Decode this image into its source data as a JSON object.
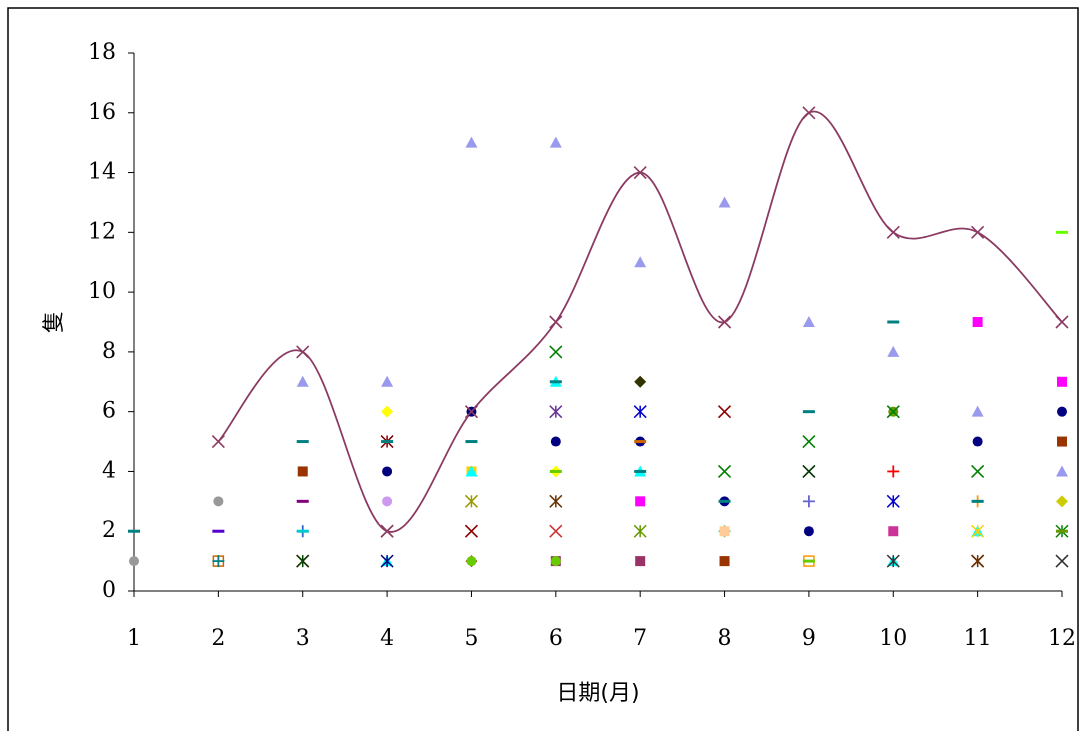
{
  "chart_data": {
    "type": "scatter",
    "title": "",
    "xlabel": "日期(月)",
    "ylabel": "隻",
    "x_ticks": [
      "1",
      "2",
      "3",
      "4",
      "5",
      "6",
      "7",
      "8",
      "9",
      "10",
      "11",
      "12"
    ],
    "y_ticks": [
      "0",
      "2",
      "4",
      "6",
      "8",
      "10",
      "12",
      "14",
      "16",
      "18"
    ],
    "xlim": [
      1,
      12
    ],
    "ylim": [
      0,
      18
    ],
    "grid": false,
    "legend": "none",
    "total_line": {
      "color": "#8b3a62",
      "marker": "x",
      "points": [
        [
          2,
          5
        ],
        [
          3,
          8
        ],
        [
          4,
          2
        ],
        [
          5,
          6
        ],
        [
          6,
          9
        ],
        [
          7,
          14
        ],
        [
          8,
          9
        ],
        [
          9,
          16
        ],
        [
          10,
          12
        ],
        [
          11,
          12
        ],
        [
          12,
          9
        ]
      ]
    },
    "scatter_points": [
      {
        "x": 1,
        "y": 1,
        "marker": "circle",
        "color": "#999999"
      },
      {
        "x": 1,
        "y": 2,
        "marker": "dash",
        "color": "#008080"
      },
      {
        "x": 2,
        "y": 1,
        "marker": "square-open",
        "color": "#cc6600"
      },
      {
        "x": 2,
        "y": 1,
        "marker": "plus",
        "color": "#008080"
      },
      {
        "x": 2,
        "y": 2,
        "marker": "dash",
        "color": "#5500cc"
      },
      {
        "x": 2,
        "y": 3,
        "marker": "circle",
        "color": "#999999"
      },
      {
        "x": 3,
        "y": 1,
        "marker": "x",
        "color": "#8b0000"
      },
      {
        "x": 3,
        "y": 1,
        "marker": "star",
        "color": "#004400"
      },
      {
        "x": 3,
        "y": 2,
        "marker": "plus",
        "color": "#3366cc"
      },
      {
        "x": 3,
        "y": 2,
        "marker": "dash",
        "color": "#00cccc"
      },
      {
        "x": 3,
        "y": 3,
        "marker": "dash",
        "color": "#800080"
      },
      {
        "x": 3,
        "y": 4,
        "marker": "square",
        "color": "#993300"
      },
      {
        "x": 3,
        "y": 5,
        "marker": "dash",
        "color": "#008080"
      },
      {
        "x": 3,
        "y": 7,
        "marker": "triangle",
        "color": "#9999ee"
      },
      {
        "x": 4,
        "y": 1,
        "marker": "triangle",
        "color": "#00ffff"
      },
      {
        "x": 4,
        "y": 1,
        "marker": "star",
        "color": "#000080"
      },
      {
        "x": 4,
        "y": 2,
        "marker": "x",
        "color": "#996666"
      },
      {
        "x": 4,
        "y": 3,
        "marker": "circle",
        "color": "#cc99ee"
      },
      {
        "x": 4,
        "y": 4,
        "marker": "circle",
        "color": "#000080"
      },
      {
        "x": 4,
        "y": 5,
        "marker": "star",
        "color": "#800000"
      },
      {
        "x": 4,
        "y": 5,
        "marker": "dash",
        "color": "#008080"
      },
      {
        "x": 4,
        "y": 6,
        "marker": "diamond",
        "color": "#ffff00"
      },
      {
        "x": 4,
        "y": 7,
        "marker": "triangle",
        "color": "#9999ee"
      },
      {
        "x": 5,
        "y": 1,
        "marker": "diamond",
        "color": "#993300"
      },
      {
        "x": 5,
        "y": 1,
        "marker": "circle",
        "color": "#66cc00"
      },
      {
        "x": 5,
        "y": 2,
        "marker": "x",
        "color": "#8b0000"
      },
      {
        "x": 5,
        "y": 3,
        "marker": "star",
        "color": "#999900"
      },
      {
        "x": 5,
        "y": 4,
        "marker": "square",
        "color": "#ffcc00"
      },
      {
        "x": 5,
        "y": 4,
        "marker": "triangle",
        "color": "#00ffff"
      },
      {
        "x": 5,
        "y": 5,
        "marker": "dash",
        "color": "#008080"
      },
      {
        "x": 5,
        "y": 6,
        "marker": "circle",
        "color": "#000080"
      },
      {
        "x": 5,
        "y": 15,
        "marker": "triangle",
        "color": "#9999ee"
      },
      {
        "x": 6,
        "y": 1,
        "marker": "square",
        "color": "#993366"
      },
      {
        "x": 6,
        "y": 1,
        "marker": "circle",
        "color": "#66cc00"
      },
      {
        "x": 6,
        "y": 2,
        "marker": "x",
        "color": "#cc3333"
      },
      {
        "x": 6,
        "y": 3,
        "marker": "star",
        "color": "#663300"
      },
      {
        "x": 6,
        "y": 4,
        "marker": "diamond",
        "color": "#ffff00"
      },
      {
        "x": 6,
        "y": 4,
        "marker": "dash",
        "color": "#66cc00"
      },
      {
        "x": 6,
        "y": 5,
        "marker": "circle",
        "color": "#000080"
      },
      {
        "x": 6,
        "y": 6,
        "marker": "star",
        "color": "#663399"
      },
      {
        "x": 6,
        "y": 7,
        "marker": "triangle",
        "color": "#00ffff"
      },
      {
        "x": 6,
        "y": 7,
        "marker": "dash",
        "color": "#008080"
      },
      {
        "x": 6,
        "y": 8,
        "marker": "x",
        "color": "#008000"
      },
      {
        "x": 6,
        "y": 15,
        "marker": "triangle",
        "color": "#9999ee"
      },
      {
        "x": 7,
        "y": 1,
        "marker": "square",
        "color": "#993366"
      },
      {
        "x": 7,
        "y": 2,
        "marker": "star",
        "color": "#669900"
      },
      {
        "x": 7,
        "y": 3,
        "marker": "square",
        "color": "#ff00ff"
      },
      {
        "x": 7,
        "y": 4,
        "marker": "triangle",
        "color": "#00ffff"
      },
      {
        "x": 7,
        "y": 4,
        "marker": "dash",
        "color": "#008080"
      },
      {
        "x": 7,
        "y": 5,
        "marker": "circle",
        "color": "#000080"
      },
      {
        "x": 7,
        "y": 5,
        "marker": "dash",
        "color": "#cc6600"
      },
      {
        "x": 7,
        "y": 6,
        "marker": "star",
        "color": "#0000cc"
      },
      {
        "x": 7,
        "y": 7,
        "marker": "diamond",
        "color": "#333300"
      },
      {
        "x": 7,
        "y": 11,
        "marker": "triangle",
        "color": "#9999ee"
      },
      {
        "x": 8,
        "y": 1,
        "marker": "circle",
        "color": "#cc6600"
      },
      {
        "x": 8,
        "y": 1,
        "marker": "square",
        "color": "#993300"
      },
      {
        "x": 8,
        "y": 2,
        "marker": "plus",
        "color": "#66cc66"
      },
      {
        "x": 8,
        "y": 2,
        "marker": "square",
        "color": "#ffcc99"
      },
      {
        "x": 8,
        "y": 3,
        "marker": "circle",
        "color": "#000080"
      },
      {
        "x": 8,
        "y": 3,
        "marker": "dash",
        "color": "#008080"
      },
      {
        "x": 8,
        "y": 4,
        "marker": "x",
        "color": "#008000"
      },
      {
        "x": 8,
        "y": 6,
        "marker": "x",
        "color": "#8b0000"
      },
      {
        "x": 8,
        "y": 13,
        "marker": "triangle",
        "color": "#9999ee"
      },
      {
        "x": 9,
        "y": 1,
        "marker": "square-open",
        "color": "#ff9900"
      },
      {
        "x": 9,
        "y": 1,
        "marker": "dash",
        "color": "#66cc00"
      },
      {
        "x": 9,
        "y": 2,
        "marker": "circle",
        "color": "#000080"
      },
      {
        "x": 9,
        "y": 3,
        "marker": "plus",
        "color": "#6666cc"
      },
      {
        "x": 9,
        "y": 4,
        "marker": "x",
        "color": "#003300"
      },
      {
        "x": 9,
        "y": 5,
        "marker": "x",
        "color": "#008000"
      },
      {
        "x": 9,
        "y": 6,
        "marker": "dash",
        "color": "#008080"
      },
      {
        "x": 9,
        "y": 9,
        "marker": "triangle",
        "color": "#9999ee"
      },
      {
        "x": 10,
        "y": 1,
        "marker": "triangle",
        "color": "#00ffff"
      },
      {
        "x": 10,
        "y": 1,
        "marker": "star",
        "color": "#333333"
      },
      {
        "x": 10,
        "y": 2,
        "marker": "square",
        "color": "#cc3399"
      },
      {
        "x": 10,
        "y": 3,
        "marker": "star",
        "color": "#0000cc"
      },
      {
        "x": 10,
        "y": 4,
        "marker": "plus",
        "color": "#ff0000"
      },
      {
        "x": 10,
        "y": 6,
        "marker": "circle",
        "color": "#669900"
      },
      {
        "x": 10,
        "y": 6,
        "marker": "x",
        "color": "#008000"
      },
      {
        "x": 10,
        "y": 8,
        "marker": "triangle",
        "color": "#9999ee"
      },
      {
        "x": 10,
        "y": 9,
        "marker": "dash",
        "color": "#008080"
      },
      {
        "x": 11,
        "y": 1,
        "marker": "x",
        "color": "#8b0000"
      },
      {
        "x": 11,
        "y": 1,
        "marker": "star",
        "color": "#663300"
      },
      {
        "x": 11,
        "y": 2,
        "marker": "triangle",
        "color": "#00ffff"
      },
      {
        "x": 11,
        "y": 2,
        "marker": "star",
        "color": "#ffcc00"
      },
      {
        "x": 11,
        "y": 3,
        "marker": "plus",
        "color": "#ff9900"
      },
      {
        "x": 11,
        "y": 3,
        "marker": "dash",
        "color": "#008080"
      },
      {
        "x": 11,
        "y": 4,
        "marker": "x",
        "color": "#008000"
      },
      {
        "x": 11,
        "y": 5,
        "marker": "circle",
        "color": "#000080"
      },
      {
        "x": 11,
        "y": 6,
        "marker": "triangle",
        "color": "#9999ee"
      },
      {
        "x": 11,
        "y": 9,
        "marker": "square",
        "color": "#ff00ff"
      },
      {
        "x": 12,
        "y": 1,
        "marker": "x",
        "color": "#333333"
      },
      {
        "x": 12,
        "y": 2,
        "marker": "star",
        "color": "#008000"
      },
      {
        "x": 12,
        "y": 2,
        "marker": "dash",
        "color": "#669900"
      },
      {
        "x": 12,
        "y": 3,
        "marker": "diamond",
        "color": "#cccc00"
      },
      {
        "x": 12,
        "y": 4,
        "marker": "triangle",
        "color": "#9999ee"
      },
      {
        "x": 12,
        "y": 5,
        "marker": "square",
        "color": "#993300"
      },
      {
        "x": 12,
        "y": 6,
        "marker": "circle",
        "color": "#000080"
      },
      {
        "x": 12,
        "y": 7,
        "marker": "square",
        "color": "#ff00ff"
      },
      {
        "x": 12,
        "y": 12,
        "marker": "dash",
        "color": "#66ff00"
      }
    ]
  }
}
